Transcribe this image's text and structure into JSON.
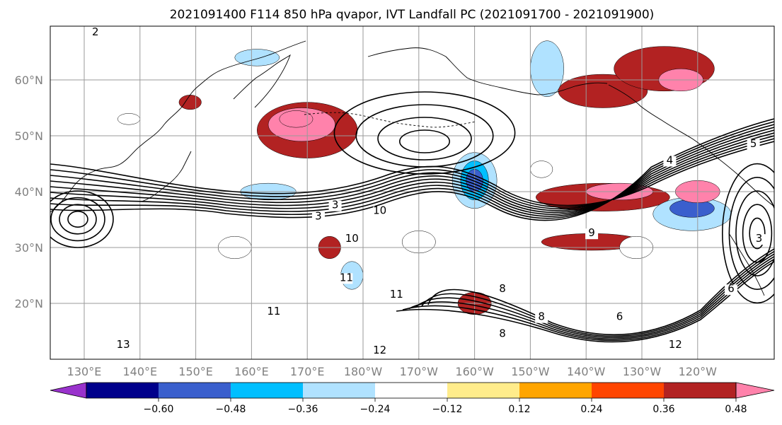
{
  "chart_data": {
    "type": "heatmap",
    "title": "2021091400 F114 850 hPa qvapor, IVT Landfall PC (2021091700 - 2021091900)",
    "projection": "map, North Pacific",
    "x_ticks": [
      "130°E",
      "140°E",
      "150°E",
      "160°E",
      "170°E",
      "180°W",
      "170°W",
      "160°W",
      "150°W",
      "140°W",
      "130°W",
      "120°W"
    ],
    "x_tick_lons": [
      130,
      140,
      150,
      160,
      170,
      180,
      190,
      200,
      210,
      220,
      230,
      240
    ],
    "y_ticks": [
      "60°N",
      "50°N",
      "40°N",
      "30°N",
      "20°N"
    ],
    "y_tick_lats": [
      60,
      50,
      40,
      30,
      20
    ],
    "xlim": [
      130,
      243
    ],
    "ylim": [
      10,
      70
    ],
    "grid": true,
    "colorbar": {
      "placement": "bottom",
      "extend": "both",
      "levels": [
        -0.72,
        -0.6,
        -0.48,
        -0.36,
        -0.24,
        -0.12,
        0.12,
        0.24,
        0.36,
        0.48,
        0.6,
        0.72
      ],
      "tick_labels": [
        "−0.60",
        "−0.48",
        "−0.36",
        "−0.24",
        "−0.12",
        "0.12",
        "0.24",
        "0.36",
        "0.48",
        "0.60"
      ],
      "colors": [
        "#9932cc",
        "#00008b",
        "#3a5fcd",
        "#00bfff",
        "#b0e2ff",
        "#ffffff",
        "#ffec8b",
        "#ffa500",
        "#ff4500",
        "#b22222",
        "#ff82ab"
      ]
    },
    "contour_labels": [
      {
        "text": "3",
        "lon": 175,
        "lat": 37
      },
      {
        "text": "3",
        "lon": 172,
        "lat": 35
      },
      {
        "text": "10",
        "lon": 183,
        "lat": 36
      },
      {
        "text": "10",
        "lon": 178,
        "lat": 31
      },
      {
        "text": "11",
        "lon": 177,
        "lat": 24
      },
      {
        "text": "11",
        "lon": 186,
        "lat": 21
      },
      {
        "text": "11",
        "lon": 164,
        "lat": 18
      },
      {
        "text": "12",
        "lon": 183,
        "lat": 11
      },
      {
        "text": "12",
        "lon": 236,
        "lat": 12
      },
      {
        "text": "13",
        "lon": 137,
        "lat": 12
      },
      {
        "text": "9",
        "lon": 221,
        "lat": 32
      },
      {
        "text": "8",
        "lon": 205,
        "lat": 22
      },
      {
        "text": "8",
        "lon": 212,
        "lat": 17
      },
      {
        "text": "8",
        "lon": 205,
        "lat": 14
      },
      {
        "text": "6",
        "lon": 226,
        "lat": 17
      },
      {
        "text": "6",
        "lon": 246,
        "lat": 22
      },
      {
        "text": "4",
        "lon": 235,
        "lat": 45
      },
      {
        "text": "2",
        "lon": 255,
        "lat": 39
      },
      {
        "text": "5",
        "lon": 250,
        "lat": 48
      },
      {
        "text": "6",
        "lon": 262,
        "lat": 50
      },
      {
        "text": "3",
        "lon": 251,
        "lat": 31
      },
      {
        "text": "2",
        "lon": 132,
        "lat": 68
      }
    ],
    "anomaly_blobs": [
      {
        "lon": 170,
        "lat": 51,
        "rx": 9,
        "ry": 5,
        "value": 0.36
      },
      {
        "lon": 169,
        "lat": 52,
        "rx": 6,
        "ry": 3,
        "value": 0.48
      },
      {
        "lon": 168,
        "lat": 53,
        "rx": 3,
        "ry": 1.5,
        "value": 0.6
      },
      {
        "lon": 200,
        "lat": 42,
        "rx": 4,
        "ry": 5,
        "value": -0.36
      },
      {
        "lon": 200,
        "lat": 42,
        "rx": 2.5,
        "ry": 3.5,
        "value": -0.48
      },
      {
        "lon": 200,
        "lat": 42,
        "rx": 1.5,
        "ry": 2,
        "value": -0.6
      },
      {
        "lon": 163,
        "lat": 40,
        "rx": 5,
        "ry": 1.5,
        "value": -0.36
      },
      {
        "lon": 223,
        "lat": 39,
        "rx": 12,
        "ry": 2.5,
        "value": 0.36
      },
      {
        "lon": 226,
        "lat": 40,
        "rx": 6,
        "ry": 1.5,
        "value": 0.48
      },
      {
        "lon": 221,
        "lat": 31,
        "rx": 9,
        "ry": 1.5,
        "value": 0.36
      },
      {
        "lon": 239,
        "lat": 36,
        "rx": 7,
        "ry": 3,
        "value": -0.36
      },
      {
        "lon": 239,
        "lat": 37,
        "rx": 4,
        "ry": 1.6,
        "value": -0.6
      },
      {
        "lon": 240,
        "lat": 40,
        "rx": 4,
        "ry": 2,
        "value": 0.6
      },
      {
        "lon": 223,
        "lat": 58,
        "rx": 8,
        "ry": 3,
        "value": 0.36
      },
      {
        "lon": 234,
        "lat": 62,
        "rx": 9,
        "ry": 4,
        "value": 0.36
      },
      {
        "lon": 237,
        "lat": 60,
        "rx": 4,
        "ry": 2,
        "value": 0.48
      },
      {
        "lon": 213,
        "lat": 62,
        "rx": 3,
        "ry": 5,
        "value": -0.36
      },
      {
        "lon": 161,
        "lat": 64,
        "rx": 4,
        "ry": 1.5,
        "value": -0.36
      },
      {
        "lon": 174,
        "lat": 30,
        "rx": 2,
        "ry": 2,
        "value": 0.36
      },
      {
        "lon": 178,
        "lat": 25,
        "rx": 2,
        "ry": 2.5,
        "value": -0.36
      },
      {
        "lon": 200,
        "lat": 20,
        "rx": 3,
        "ry": 2,
        "value": 0.36
      },
      {
        "lon": 190,
        "lat": 31,
        "rx": 3,
        "ry": 2,
        "value": -0.24
      },
      {
        "lon": 157,
        "lat": 30,
        "rx": 3,
        "ry": 2,
        "value": -0.24
      },
      {
        "lon": 229,
        "lat": 30,
        "rx": 3,
        "ry": 2,
        "value": -0.24
      },
      {
        "lon": 212,
        "lat": 44,
        "rx": 2,
        "ry": 1.5,
        "value": -0.24
      },
      {
        "lon": 138,
        "lat": 53,
        "rx": 2,
        "ry": 1,
        "value": -0.24
      },
      {
        "lon": 149,
        "lat": 56,
        "rx": 2,
        "ry": 1.3,
        "value": 0.36
      }
    ]
  }
}
